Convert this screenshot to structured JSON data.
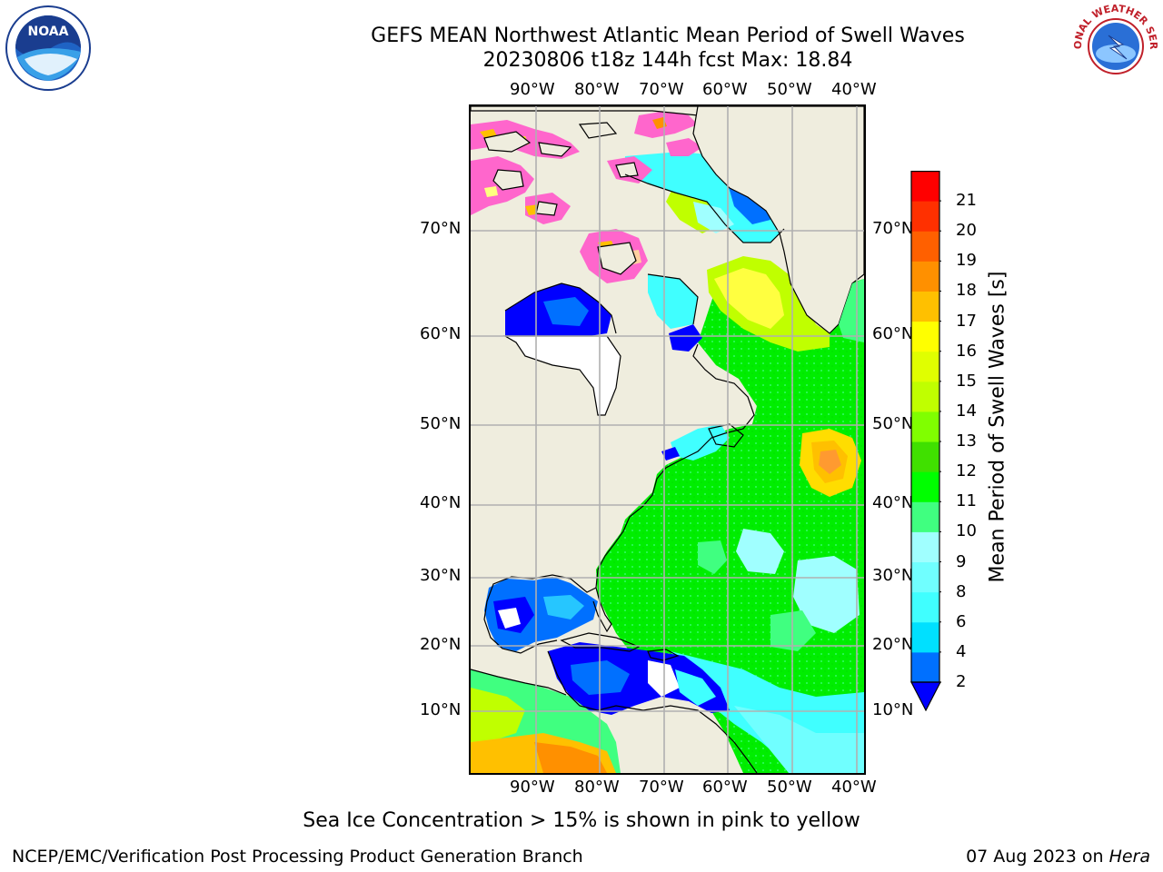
{
  "header": {
    "title_line1": "GEFS MEAN Northwest Atlantic Mean Period of Swell Waves",
    "title_line2": "20230806 t18z 144h fcst   Max: 18.84"
  },
  "logos": {
    "left": {
      "name": "noaa-logo",
      "text": "NOAA"
    },
    "right": {
      "name": "nws-logo",
      "text": "NATIONAL WEATHER SERVICE"
    }
  },
  "map": {
    "lon_labels": [
      "90°W",
      "80°W",
      "70°W",
      "60°W",
      "50°W",
      "40°W"
    ],
    "lat_labels": [
      "70°N",
      "60°N",
      "50°N",
      "40°N",
      "30°N",
      "20°N",
      "10°N"
    ],
    "colors": {
      "land": "#efedde",
      "frame": "#000000",
      "grid": "#b0b0b0"
    }
  },
  "colorbar": {
    "title": "Mean Period of Swell Waves [s]",
    "ticks": [
      "2",
      "4",
      "6",
      "8",
      "9",
      "10",
      "11",
      "12",
      "13",
      "14",
      "15",
      "16",
      "17",
      "18",
      "19",
      "20",
      "21"
    ],
    "colors": [
      "#0070ff",
      "#00e0ff",
      "#40ffff",
      "#70ffff",
      "#a0ffff",
      "#40ff80",
      "#00ff00",
      "#40e000",
      "#80ff00",
      "#c0ff00",
      "#e0ff00",
      "#ffff00",
      "#ffc000",
      "#ff9000",
      "#ff6000",
      "#ff3000",
      "#ff0000"
    ],
    "under_color": "#0000ff"
  },
  "caption": "Sea Ice Concentration > 15% is shown in pink to yellow",
  "footer": {
    "left": "NCEP/EMC/Verification Post Processing Product Generation Branch",
    "right_date": "07 Aug 2023 on ",
    "right_host": "Hera"
  }
}
